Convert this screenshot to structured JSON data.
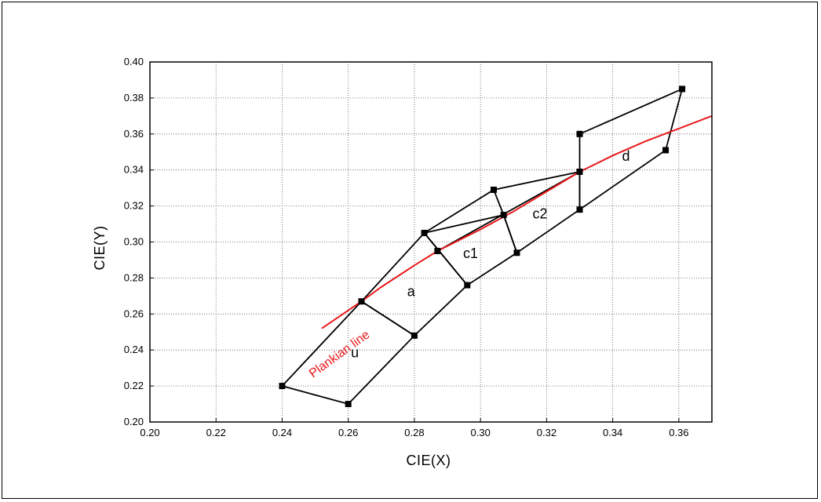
{
  "chart_data": {
    "type": "line",
    "xlabel": "CIE(X)",
    "ylabel": "CIE(Y)",
    "xlim": [
      0.2,
      0.37
    ],
    "ylim": [
      0.2,
      0.4
    ],
    "x_ticks": [
      "0.20",
      "0.22",
      "0.24",
      "0.26",
      "0.28",
      "0.30",
      "0.32",
      "0.34",
      "0.36"
    ],
    "y_ticks": [
      "0.20",
      "0.22",
      "0.24",
      "0.26",
      "0.28",
      "0.30",
      "0.32",
      "0.34",
      "0.36",
      "0.38",
      "0.40"
    ],
    "grid": true,
    "colors": {
      "regions": "#000000",
      "curve": "#e8191b"
    },
    "regions": [
      {
        "name": "u",
        "x": [
          0.24,
          0.264,
          0.28,
          0.26,
          0.24
        ],
        "y": [
          0.22,
          0.267,
          0.248,
          0.21,
          0.22
        ]
      },
      {
        "name": "a",
        "x": [
          0.264,
          0.283,
          0.296,
          0.28,
          0.264
        ],
        "y": [
          0.267,
          0.305,
          0.276,
          0.248,
          0.267
        ]
      },
      {
        "name": "c1",
        "x": [
          0.283,
          0.307,
          0.311,
          0.296,
          0.283
        ],
        "y": [
          0.305,
          0.315,
          0.294,
          0.276,
          0.305
        ]
      },
      {
        "name": "c2",
        "x": [
          0.304,
          0.33,
          0.33,
          0.311,
          0.307,
          0.304
        ],
        "y": [
          0.329,
          0.339,
          0.318,
          0.294,
          0.315,
          0.329
        ]
      },
      {
        "name": "d",
        "x": [
          0.33,
          0.361,
          0.356,
          0.33,
          0.33
        ],
        "y": [
          0.36,
          0.385,
          0.351,
          0.318,
          0.36
        ]
      }
    ],
    "extra_segments": [
      {
        "x": [
          0.283,
          0.304
        ],
        "y": [
          0.305,
          0.329
        ]
      },
      {
        "x": [
          0.287,
          0.33
        ],
        "y": [
          0.295,
          0.339
        ]
      }
    ],
    "markers": {
      "x": [
        0.24,
        0.26,
        0.264,
        0.28,
        0.283,
        0.287,
        0.296,
        0.304,
        0.307,
        0.311,
        0.33,
        0.33,
        0.33,
        0.356,
        0.361
      ],
      "y": [
        0.22,
        0.21,
        0.267,
        0.248,
        0.305,
        0.295,
        0.276,
        0.329,
        0.315,
        0.294,
        0.36,
        0.339,
        0.318,
        0.351,
        0.385
      ]
    },
    "planckian": {
      "name": "Plankian line",
      "x": [
        0.252,
        0.26,
        0.264,
        0.27,
        0.28,
        0.287,
        0.3,
        0.31,
        0.32,
        0.33,
        0.34,
        0.35,
        0.36,
        0.37
      ],
      "y": [
        0.252,
        0.262,
        0.267,
        0.275,
        0.287,
        0.295,
        0.307,
        0.317,
        0.328,
        0.339,
        0.348,
        0.356,
        0.363,
        0.37
      ]
    },
    "region_labels": [
      {
        "text": "u",
        "x": 0.262,
        "y": 0.236
      },
      {
        "text": "a",
        "x": 0.279,
        "y": 0.27
      },
      {
        "text": "c1",
        "x": 0.297,
        "y": 0.291
      },
      {
        "text": "c2",
        "x": 0.318,
        "y": 0.313
      },
      {
        "text": "d",
        "x": 0.344,
        "y": 0.345
      }
    ],
    "curve_label": {
      "text": "Plankian line",
      "x": 0.258,
      "y": 0.236
    }
  }
}
